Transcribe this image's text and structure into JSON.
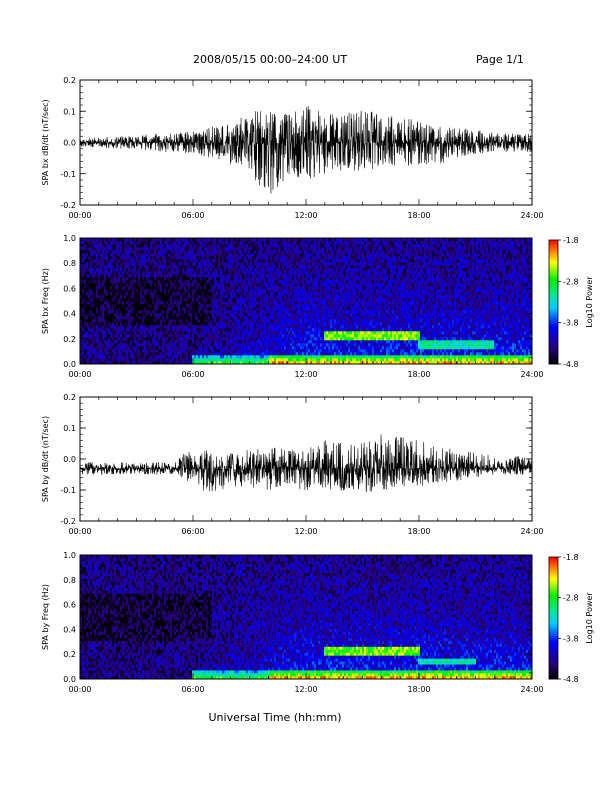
{
  "header": {
    "title": "2008/05/15  00:00–24:00 UT",
    "page": "Page 1/1"
  },
  "xaxis_label": "Universal Time (hh:mm)",
  "chart_data": [
    {
      "type": "line",
      "ylabel": "SPA bx dB/dt (nT/sec)",
      "ylim": [
        -0.2,
        0.2
      ],
      "yticks": [
        "0.2",
        "0.1",
        "0.0",
        "-0.1",
        "-0.2"
      ],
      "yticks_values": [
        0.2,
        0.1,
        0.0,
        -0.1,
        -0.2
      ],
      "xlim": [
        0,
        24
      ],
      "xticks": [
        "00:00",
        "06:00",
        "12:00",
        "18:00",
        "24:00"
      ],
      "series": [
        {
          "values": [
            0.0,
            0.0,
            0.0,
            0.0,
            0.0,
            0.0,
            0.0,
            0.0,
            0.0,
            0.0,
            0.0,
            0.0,
            0.0,
            0.0,
            0.0,
            0.0,
            0.0,
            0.0,
            0.0,
            0.0,
            0.0,
            0.0,
            0.0,
            0.0,
            0.0
          ],
          "envelope_max": [
            0.015,
            0.015,
            0.02,
            0.02,
            0.03,
            0.03,
            0.035,
            0.05,
            0.06,
            0.1,
            0.1,
            0.09,
            0.12,
            0.09,
            0.09,
            0.11,
            0.09,
            0.08,
            0.07,
            0.05,
            0.05,
            0.04,
            0.03,
            0.03,
            0.03
          ],
          "envelope_min": [
            -0.015,
            -0.015,
            -0.02,
            -0.02,
            -0.03,
            -0.03,
            -0.035,
            -0.05,
            -0.07,
            -0.1,
            -0.17,
            -0.12,
            -0.12,
            -0.1,
            -0.09,
            -0.09,
            -0.08,
            -0.08,
            -0.07,
            -0.07,
            -0.05,
            -0.04,
            -0.03,
            -0.03,
            -0.03
          ]
        }
      ]
    },
    {
      "type": "heatmap",
      "ylabel": "SPA bx Freq (Hz)",
      "ylim": [
        0.0,
        1.0
      ],
      "yticks": [
        "1.0",
        "0.8",
        "0.6",
        "0.4",
        "0.2",
        "0.0"
      ],
      "yticks_values": [
        1.0,
        0.8,
        0.6,
        0.4,
        0.2,
        0.0
      ],
      "xlim": [
        0,
        24
      ],
      "xticks": [
        "00:00",
        "06:00",
        "12:00",
        "18:00",
        "24:00"
      ],
      "colorbar": {
        "label": "Log10 Power",
        "min": -4.8,
        "max": -1.8,
        "ticks": [
          "-1.8",
          "-2.8",
          "-3.8",
          "-4.8"
        ],
        "ticks_values": [
          -1.8,
          -2.8,
          -3.8,
          -4.8
        ]
      },
      "features": [
        {
          "name": "low-frequency band",
          "freq_max": 0.08,
          "hours": [
            6,
            24
          ],
          "peak": -2.0
        },
        {
          "name": "Pc1 band",
          "freq_range": [
            0.2,
            0.27
          ],
          "hours": [
            13,
            18
          ],
          "peak": -2.6
        },
        {
          "name": "Pc1 band weak",
          "freq_range": [
            0.13,
            0.18
          ],
          "hours": [
            18,
            22
          ],
          "peak": -3.2
        }
      ]
    },
    {
      "type": "line",
      "ylabel": "SPA by dB/dt (nT/sec)",
      "ylim": [
        -0.2,
        0.2
      ],
      "yticks": [
        "0.2",
        "0.1",
        "0.0",
        "-0.1",
        "-0.2"
      ],
      "yticks_values": [
        0.2,
        0.1,
        0.0,
        -0.1,
        -0.2
      ],
      "xlim": [
        0,
        24
      ],
      "xticks": [
        "00:00",
        "06:00",
        "12:00",
        "18:00",
        "24:00"
      ],
      "series": [
        {
          "values": [
            -0.03,
            -0.03,
            -0.03,
            -0.03,
            -0.03,
            -0.03,
            -0.03,
            -0.03,
            -0.03,
            -0.03,
            -0.03,
            -0.03,
            -0.03,
            -0.03,
            -0.03,
            -0.03,
            -0.03,
            -0.03,
            -0.03,
            -0.03,
            -0.03,
            -0.03,
            -0.03,
            -0.03,
            -0.03
          ],
          "envelope_max": [
            -0.01,
            -0.01,
            -0.01,
            -0.01,
            -0.01,
            -0.01,
            0.05,
            0.02,
            0.02,
            0.03,
            0.04,
            0.03,
            0.03,
            0.06,
            0.05,
            0.05,
            0.08,
            0.07,
            0.06,
            0.04,
            0.03,
            0.02,
            0.01,
            0.01,
            0.0
          ],
          "envelope_min": [
            -0.05,
            -0.05,
            -0.05,
            -0.05,
            -0.05,
            -0.05,
            -0.08,
            -0.12,
            -0.09,
            -0.09,
            -0.1,
            -0.09,
            -0.1,
            -0.1,
            -0.1,
            -0.11,
            -0.1,
            -0.09,
            -0.09,
            -0.08,
            -0.07,
            -0.06,
            -0.05,
            -0.05,
            -0.05
          ]
        }
      ]
    },
    {
      "type": "heatmap",
      "ylabel": "SPA by Freq (Hz)",
      "ylim": [
        0.0,
        1.0
      ],
      "yticks": [
        "1.0",
        "0.8",
        "0.6",
        "0.4",
        "0.2",
        "0.0"
      ],
      "yticks_values": [
        1.0,
        0.8,
        0.6,
        0.4,
        0.2,
        0.0
      ],
      "xlim": [
        0,
        24
      ],
      "xticks": [
        "00:00",
        "06:00",
        "12:00",
        "18:00",
        "24:00"
      ],
      "colorbar": {
        "label": "Log10 Power",
        "min": -4.8,
        "max": -1.8,
        "ticks": [
          "-1.8",
          "-2.8",
          "-3.8",
          "-4.8"
        ],
        "ticks_values": [
          -1.8,
          -2.8,
          -3.8,
          -4.8
        ]
      },
      "features": [
        {
          "name": "low-frequency band",
          "freq_max": 0.08,
          "hours": [
            6,
            24
          ],
          "peak": -2.0
        },
        {
          "name": "Pc1 band",
          "freq_range": [
            0.19,
            0.25
          ],
          "hours": [
            13,
            18
          ],
          "peak": -2.6
        },
        {
          "name": "Pc1 band weak",
          "freq_range": [
            0.13,
            0.17
          ],
          "hours": [
            18,
            21
          ],
          "peak": -3.2
        }
      ]
    }
  ]
}
